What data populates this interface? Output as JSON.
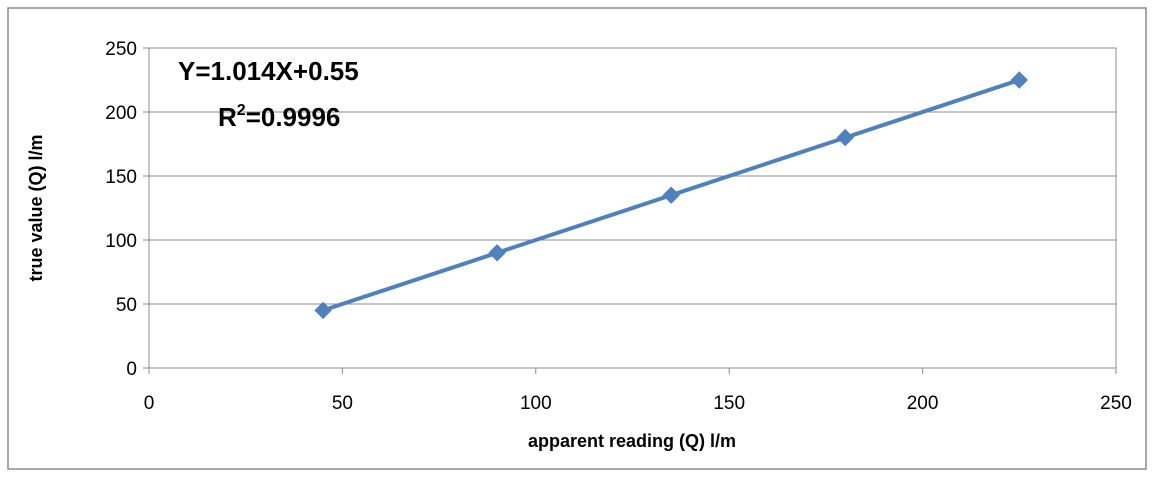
{
  "chart_data": {
    "type": "scatter",
    "title": "",
    "xlabel": "apparent reading (Q) l/m",
    "ylabel": "true value (Q) l/m",
    "xlim": [
      0,
      250
    ],
    "ylim": [
      0,
      250
    ],
    "xticks": [
      0,
      50,
      100,
      150,
      200,
      250
    ],
    "yticks": [
      0,
      50,
      100,
      150,
      200,
      250
    ],
    "grid": {
      "horizontal": true,
      "vertical": false
    },
    "legend": "none",
    "series": [
      {
        "color": "#4F81BD",
        "marker": "diamond",
        "line": true,
        "points": [
          {
            "x": 45,
            "y": 45
          },
          {
            "x": 90,
            "y": 90
          },
          {
            "x": 135,
            "y": 135
          },
          {
            "x": 180,
            "y": 180
          },
          {
            "x": 225,
            "y": 225
          }
        ]
      }
    ],
    "annotations": {
      "equation": "Y=1.014X+0.55",
      "r_squared_prefix": "R",
      "r_squared_exponent": "2",
      "r_squared_value": "=0.9996"
    }
  }
}
